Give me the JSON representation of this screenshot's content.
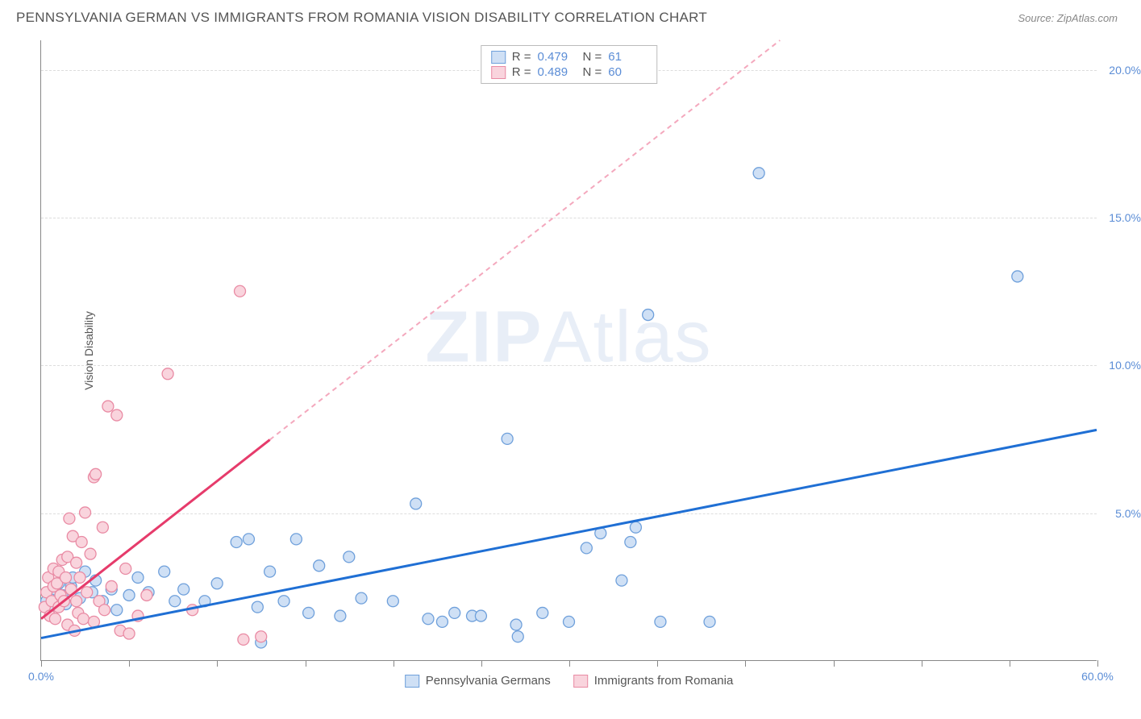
{
  "title": "PENNSYLVANIA GERMAN VS IMMIGRANTS FROM ROMANIA VISION DISABILITY CORRELATION CHART",
  "source": "Source: ZipAtlas.com",
  "ylabel": "Vision Disability",
  "watermark_bold": "ZIP",
  "watermark_light": "Atlas",
  "chart": {
    "type": "scatter",
    "xlim": [
      0,
      60
    ],
    "ylim": [
      0,
      21
    ],
    "yticks": [
      5.0,
      10.0,
      15.0,
      20.0
    ],
    "ytick_labels": [
      "5.0%",
      "10.0%",
      "15.0%",
      "20.0%"
    ],
    "xtick_positions": [
      0,
      5,
      10,
      15,
      20,
      25,
      30,
      35,
      40,
      45,
      50,
      55,
      60
    ],
    "xtick_labels": {
      "0": "0.0%",
      "60": "60.0%"
    },
    "grid_color": "#dddddd",
    "axis_color": "#888888",
    "background": "#ffffff",
    "series": [
      {
        "name": "Pennsylvania Germans",
        "key": "blue",
        "marker_fill": "#cfe0f5",
        "marker_stroke": "#6fa0db",
        "marker_radius": 7,
        "trend_color": "#1f6fd4",
        "trend_dash_color": "#1f6fd4",
        "trend": {
          "x1": 0,
          "y1": 0.75,
          "x2": 60,
          "y2": 7.8,
          "solid_until_x": 60
        },
        "R": "0.479",
        "N": "61",
        "points": [
          [
            0.3,
            2.0
          ],
          [
            0.5,
            1.8
          ],
          [
            0.8,
            2.4
          ],
          [
            1.0,
            2.6
          ],
          [
            1.2,
            2.2
          ],
          [
            1.4,
            1.9
          ],
          [
            1.7,
            2.5
          ],
          [
            1.8,
            2.8
          ],
          [
            2.2,
            2.1
          ],
          [
            2.5,
            3.0
          ],
          [
            2.9,
            2.3
          ],
          [
            3.1,
            2.7
          ],
          [
            3.5,
            2.0
          ],
          [
            4.0,
            2.4
          ],
          [
            4.3,
            1.7
          ],
          [
            5.0,
            2.2
          ],
          [
            5.5,
            2.8
          ],
          [
            6.1,
            2.3
          ],
          [
            7.0,
            3.0
          ],
          [
            7.6,
            2.0
          ],
          [
            8.1,
            2.4
          ],
          [
            9.3,
            2.0
          ],
          [
            10.0,
            2.6
          ],
          [
            11.1,
            4.0
          ],
          [
            11.8,
            4.1
          ],
          [
            12.3,
            1.8
          ],
          [
            12.5,
            0.6
          ],
          [
            13.0,
            3.0
          ],
          [
            13.8,
            2.0
          ],
          [
            14.5,
            4.1
          ],
          [
            15.2,
            1.6
          ],
          [
            15.8,
            3.2
          ],
          [
            17.0,
            1.5
          ],
          [
            17.5,
            3.5
          ],
          [
            18.2,
            2.1
          ],
          [
            20.0,
            2.0
          ],
          [
            21.3,
            5.3
          ],
          [
            22.0,
            1.4
          ],
          [
            22.8,
            1.3
          ],
          [
            23.5,
            1.6
          ],
          [
            24.5,
            1.5
          ],
          [
            25.0,
            1.5
          ],
          [
            26.5,
            7.5
          ],
          [
            27.0,
            1.2
          ],
          [
            28.5,
            1.6
          ],
          [
            30.0,
            1.3
          ],
          [
            31.0,
            3.8
          ],
          [
            31.8,
            4.3
          ],
          [
            33.0,
            2.7
          ],
          [
            33.5,
            4.0
          ],
          [
            33.8,
            4.5
          ],
          [
            34.5,
            11.7
          ],
          [
            35.2,
            1.3
          ],
          [
            38.0,
            1.3
          ],
          [
            40.8,
            16.5
          ],
          [
            55.5,
            13.0
          ],
          [
            27.1,
            0.8
          ]
        ]
      },
      {
        "name": "Immigrants from Romania",
        "key": "pink",
        "marker_fill": "#f9d4dd",
        "marker_stroke": "#e98ba4",
        "marker_radius": 7,
        "trend_color": "#e63b6b",
        "trend_dash_color": "#f4a8bd",
        "trend": {
          "x1": 0,
          "y1": 1.4,
          "x2": 42,
          "y2": 21.0,
          "solid_until_x": 13
        },
        "R": "0.489",
        "N": "60",
        "points": [
          [
            0.2,
            1.8
          ],
          [
            0.3,
            2.3
          ],
          [
            0.4,
            2.8
          ],
          [
            0.5,
            1.5
          ],
          [
            0.6,
            2.0
          ],
          [
            0.7,
            3.1
          ],
          [
            0.7,
            2.5
          ],
          [
            0.8,
            1.4
          ],
          [
            0.9,
            2.6
          ],
          [
            1.0,
            3.0
          ],
          [
            1.0,
            1.8
          ],
          [
            1.1,
            2.2
          ],
          [
            1.2,
            3.4
          ],
          [
            1.3,
            2.0
          ],
          [
            1.4,
            2.8
          ],
          [
            1.5,
            1.2
          ],
          [
            1.5,
            3.5
          ],
          [
            1.6,
            4.8
          ],
          [
            1.7,
            2.4
          ],
          [
            1.8,
            4.2
          ],
          [
            1.9,
            1.0
          ],
          [
            2.0,
            2.0
          ],
          [
            2.0,
            3.3
          ],
          [
            2.1,
            1.6
          ],
          [
            2.2,
            2.8
          ],
          [
            2.3,
            4.0
          ],
          [
            2.4,
            1.4
          ],
          [
            2.5,
            5.0
          ],
          [
            2.6,
            2.3
          ],
          [
            2.8,
            3.6
          ],
          [
            3.0,
            6.2
          ],
          [
            3.0,
            1.3
          ],
          [
            3.1,
            6.3
          ],
          [
            3.3,
            2.0
          ],
          [
            3.5,
            4.5
          ],
          [
            3.6,
            1.7
          ],
          [
            3.8,
            8.6
          ],
          [
            4.0,
            2.5
          ],
          [
            4.3,
            8.3
          ],
          [
            4.5,
            1.0
          ],
          [
            4.8,
            3.1
          ],
          [
            5.0,
            0.9
          ],
          [
            5.5,
            1.5
          ],
          [
            6.0,
            2.2
          ],
          [
            7.2,
            9.7
          ],
          [
            8.6,
            1.7
          ],
          [
            11.3,
            12.5
          ],
          [
            11.5,
            0.7
          ],
          [
            12.5,
            0.8
          ]
        ]
      }
    ],
    "stats_box": {
      "rows": [
        {
          "swatch_fill": "#cfe0f5",
          "swatch_border": "#6fa0db",
          "r_label": "R =",
          "r_val": "0.479",
          "n_label": "N =",
          "n_val": "61"
        },
        {
          "swatch_fill": "#f9d4dd",
          "swatch_border": "#e98ba4",
          "r_label": "R =",
          "r_val": "0.489",
          "n_label": "N =",
          "n_val": "60"
        }
      ]
    },
    "legend": [
      {
        "swatch_fill": "#cfe0f5",
        "swatch_border": "#6fa0db",
        "label": "Pennsylvania Germans"
      },
      {
        "swatch_fill": "#f9d4dd",
        "swatch_border": "#e98ba4",
        "label": "Immigrants from Romania"
      }
    ]
  }
}
